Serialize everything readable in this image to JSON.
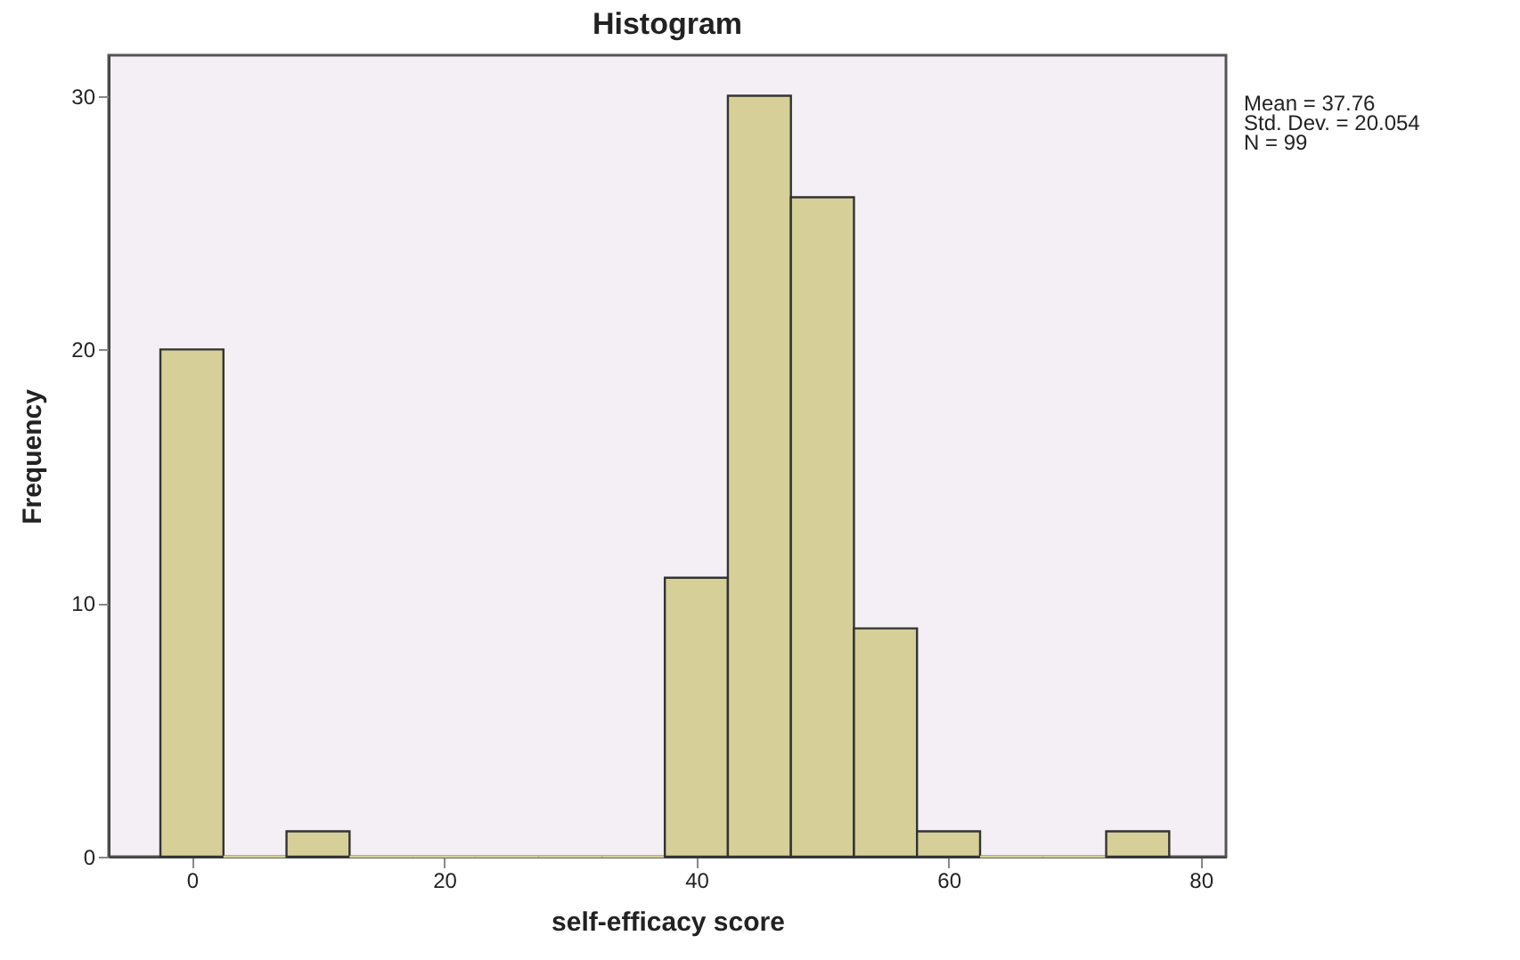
{
  "chart_data": {
    "type": "histogram",
    "title": "Histogram",
    "xlabel": "self-efficacy score",
    "ylabel": "Frequency",
    "bins": [
      -2.5,
      2.5,
      7.5,
      12.5,
      17.5,
      22.5,
      27.5,
      32.5,
      37.5,
      42.5,
      47.5,
      52.5,
      57.5,
      62.5,
      67.5,
      72.5,
      77.5
    ],
    "values": [
      20,
      0,
      1,
      0,
      0,
      0,
      0,
      0,
      11,
      30,
      26,
      9,
      1,
      0,
      0,
      1
    ],
    "color": "#d6cf98",
    "xlim": [
      -6.6,
      82
    ],
    "xticks": [
      0,
      20,
      40,
      60,
      80
    ],
    "ylim": [
      0,
      31.6
    ],
    "yticks": [
      0,
      10,
      20,
      30
    ],
    "grid": false,
    "annotations": [
      "Mean = 37.76",
      "Std. Dev. = 20.054",
      "N = 99"
    ]
  }
}
